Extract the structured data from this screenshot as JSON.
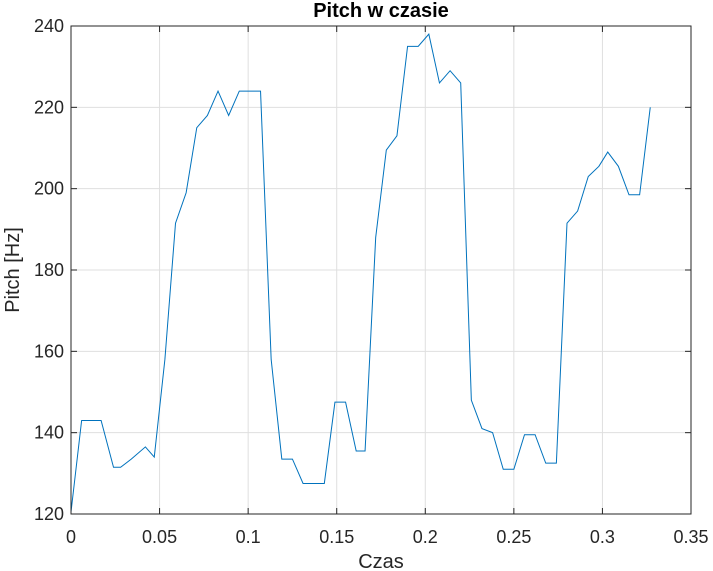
{
  "chart_data": {
    "type": "line",
    "title": "Pitch w czasie",
    "xlabel": "Czas",
    "ylabel": "Pitch [Hz]",
    "xlim": [
      0,
      0.35
    ],
    "ylim": [
      120,
      240
    ],
    "xticks": [
      0,
      0.05,
      0.1,
      0.15,
      0.2,
      0.25,
      0.3,
      0.35
    ],
    "xtick_labels": [
      "0",
      "0.05",
      "0.1",
      "0.15",
      "0.2",
      "0.25",
      "0.3",
      "0.35"
    ],
    "yticks": [
      120,
      140,
      160,
      180,
      200,
      220,
      240
    ],
    "ytick_labels": [
      "120",
      "140",
      "160",
      "180",
      "200",
      "220",
      "240"
    ],
    "grid": true,
    "line_color": "#0072BD",
    "series": [
      {
        "x": [
          0,
          0.006,
          0.017,
          0.024,
          0.028,
          0.034,
          0.042,
          0.047,
          0.053,
          0.059,
          0.065,
          0.071,
          0.077,
          0.083,
          0.089,
          0.095,
          0.101,
          0.107,
          0.113,
          0.119,
          0.125,
          0.131,
          0.137,
          0.143,
          0.149,
          0.155,
          0.161,
          0.166,
          0.172,
          0.178,
          0.184,
          0.19,
          0.196,
          0.202,
          0.208,
          0.214,
          0.22,
          0.226,
          0.232,
          0.238,
          0.244,
          0.25,
          0.256,
          0.262,
          0.268,
          0.274,
          0.28,
          0.286,
          0.292,
          0.298,
          0.303,
          0.309,
          0.315,
          0.321,
          0.327
        ],
        "y": [
          120.5,
          143,
          143,
          131.5,
          131.5,
          133.5,
          136.5,
          134,
          158,
          191.5,
          199,
          215,
          218,
          224,
          218,
          224,
          224,
          224,
          158,
          133.5,
          133.5,
          127.5,
          127.5,
          127.5,
          147.5,
          147.5,
          135.5,
          135.5,
          188,
          209.5,
          213,
          235,
          235,
          238,
          226,
          229,
          226,
          148,
          141,
          140,
          131,
          131,
          139.5,
          139.5,
          132.5,
          132.5,
          191.5,
          194.5,
          203,
          205.5,
          209,
          205.5,
          198.5,
          198.5,
          220
        ]
      }
    ]
  }
}
